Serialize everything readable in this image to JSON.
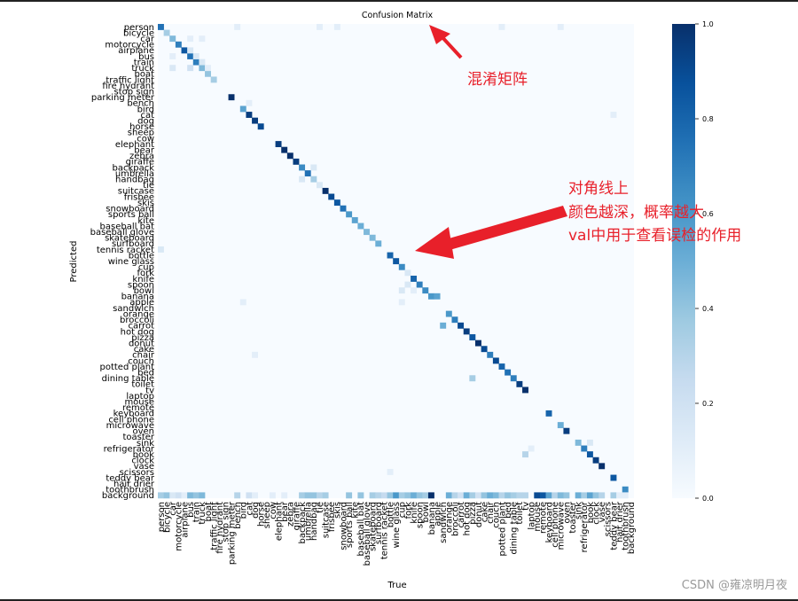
{
  "chart_data": {
    "type": "heatmap",
    "title": "Confusion Matrix",
    "xlabel": "True",
    "ylabel": "Predicted",
    "labels": [
      "person",
      "bicycle",
      "car",
      "motorcycle",
      "airplane",
      "bus",
      "train",
      "truck",
      "boat",
      "traffic light",
      "fire hydrant",
      "stop sign",
      "parking meter",
      "bench",
      "bird",
      "cat",
      "dog",
      "horse",
      "sheep",
      "cow",
      "elephant",
      "bear",
      "zebra",
      "giraffe",
      "backpack",
      "umbrella",
      "handbag",
      "tie",
      "suitcase",
      "frisbee",
      "skis",
      "snowboard",
      "sports ball",
      "kite",
      "baseball bat",
      "baseball glove",
      "skateboard",
      "surfboard",
      "tennis racket",
      "bottle",
      "wine glass",
      "cup",
      "fork",
      "knife",
      "spoon",
      "bowl",
      "banana",
      "apple",
      "sandwich",
      "orange",
      "broccoli",
      "carrot",
      "hot dog",
      "pizza",
      "donut",
      "cake",
      "chair",
      "couch",
      "potted plant",
      "bed",
      "dining table",
      "toilet",
      "tv",
      "laptop",
      "mouse",
      "remote",
      "keyboard",
      "cell phone",
      "microwave",
      "oven",
      "toaster",
      "sink",
      "refrigerator",
      "book",
      "clock",
      "vase",
      "scissors",
      "teddy bear",
      "hair drier",
      "toothbrush",
      "background"
    ],
    "colorbar": {
      "min": 0.0,
      "max": 1.0,
      "ticks": [
        "0.0",
        "0.2",
        "0.4",
        "0.6",
        "0.8",
        "1.0"
      ]
    },
    "colormap": [
      "#f7fbff",
      "#deebf7",
      "#c6dbef",
      "#9ecae1",
      "#6baed6",
      "#4292c6",
      "#2171b5",
      "#08519c",
      "#08306b"
    ],
    "diagonal": [
      0.75,
      0.35,
      0.45,
      0.7,
      0.85,
      0.75,
      0.7,
      0.45,
      0.4,
      0.35,
      0.0,
      0.0,
      1.0,
      0.0,
      0.55,
      0.95,
      0.95,
      0.9,
      0.0,
      0.0,
      0.95,
      1.0,
      1.0,
      0.95,
      0.65,
      0.75,
      0.35,
      0.15,
      1.0,
      0.9,
      0.85,
      0.75,
      0.6,
      0.55,
      0.5,
      0.45,
      0.45,
      0.5,
      0.0,
      0.8,
      0.85,
      0.65,
      0.15,
      0.8,
      0.7,
      0.65,
      0.6,
      0.0,
      0.0,
      0.6,
      0.7,
      0.9,
      0.95,
      0.85,
      1.0,
      0.9,
      0.7,
      0.9,
      0.8,
      0.75,
      0.7,
      0.95,
      1.0,
      0.0,
      0.0,
      0.0,
      0.8,
      0.0,
      0.5,
      0.95,
      0.0,
      0.45,
      0.7,
      0.85,
      0.95,
      1.0,
      0.0,
      0.85,
      0.0,
      0.65,
      0.0
    ],
    "off_diagonal": [
      {
        "row": 0,
        "col": 13,
        "value": 0.1
      },
      {
        "row": 0,
        "col": 27,
        "value": 0.1
      },
      {
        "row": 0,
        "col": 30,
        "value": 0.1
      },
      {
        "row": 0,
        "col": 58,
        "value": 0.1
      },
      {
        "row": 0,
        "col": 68,
        "value": 0.1
      },
      {
        "row": 2,
        "col": 5,
        "value": 0.1
      },
      {
        "row": 2,
        "col": 7,
        "value": 0.1
      },
      {
        "row": 4,
        "col": 5,
        "value": 0.15
      },
      {
        "row": 5,
        "col": 2,
        "value": 0.1
      },
      {
        "row": 5,
        "col": 6,
        "value": 0.15
      },
      {
        "row": 6,
        "col": 7,
        "value": 0.15
      },
      {
        "row": 7,
        "col": 2,
        "value": 0.15
      },
      {
        "row": 7,
        "col": 5,
        "value": 0.2
      },
      {
        "row": 7,
        "col": 8,
        "value": 0.1
      },
      {
        "row": 13,
        "col": 15,
        "value": 0.1
      },
      {
        "row": 15,
        "col": 77,
        "value": 0.1
      },
      {
        "row": 24,
        "col": 26,
        "value": 0.15
      },
      {
        "row": 26,
        "col": 24,
        "value": 0.15
      },
      {
        "row": 38,
        "col": 0,
        "value": 0.15
      },
      {
        "row": 44,
        "col": 42,
        "value": 0.15
      },
      {
        "row": 45,
        "col": 41,
        "value": 0.15
      },
      {
        "row": 45,
        "col": 43,
        "value": 0.1
      },
      {
        "row": 46,
        "col": 47,
        "value": 0.55
      },
      {
        "row": 47,
        "col": 14,
        "value": 0.1
      },
      {
        "row": 47,
        "col": 41,
        "value": 0.1
      },
      {
        "row": 51,
        "col": 48,
        "value": 0.5
      },
      {
        "row": 56,
        "col": 16,
        "value": 0.1
      },
      {
        "row": 60,
        "col": 53,
        "value": 0.35
      },
      {
        "row": 65,
        "col": 64,
        "value": 0.0
      },
      {
        "row": 71,
        "col": 73,
        "value": 0.15
      },
      {
        "row": 72,
        "col": 63,
        "value": 0.1
      },
      {
        "row": 73,
        "col": 62,
        "value": 0.3
      },
      {
        "row": 76,
        "col": 39,
        "value": 0.1
      }
    ],
    "background_row": [
      0.35,
      0.4,
      0.15,
      0.2,
      0.1,
      0.45,
      0.4,
      0.45,
      0.0,
      0.0,
      0.0,
      0.0,
      0.0,
      0.3,
      0.0,
      0.2,
      0.1,
      0.0,
      0.0,
      0.1,
      0.0,
      0.1,
      0.0,
      0.0,
      0.35,
      0.4,
      0.4,
      0.3,
      0.35,
      0.0,
      0.0,
      0.0,
      0.4,
      0.0,
      0.4,
      0.0,
      0.35,
      0.3,
      0.25,
      0.4,
      0.6,
      0.35,
      0.4,
      0.5,
      0.4,
      0.35,
      1.0,
      0.0,
      0.0,
      0.5,
      0.3,
      0.2,
      0.5,
      0.35,
      0.2,
      0.4,
      0.5,
      0.45,
      0.3,
      0.4,
      0.35,
      0.3,
      0.3,
      0.0,
      0.9,
      0.85,
      0.55,
      0.3,
      0.45,
      0.4,
      0.0,
      0.5,
      0.35,
      0.55,
      0.4,
      0.3,
      0.0,
      0.35,
      0.1,
      0.1,
      0.0
    ]
  },
  "annotations": [
    {
      "id": "title",
      "lines": [
        "混淆矩阵"
      ]
    },
    {
      "id": "diagonal",
      "lines": [
        "对角线上",
        "颜色越深，概率越大",
        "val中用于查看误检的作用"
      ]
    }
  ],
  "watermark": "CSDN @雍凉明月夜"
}
